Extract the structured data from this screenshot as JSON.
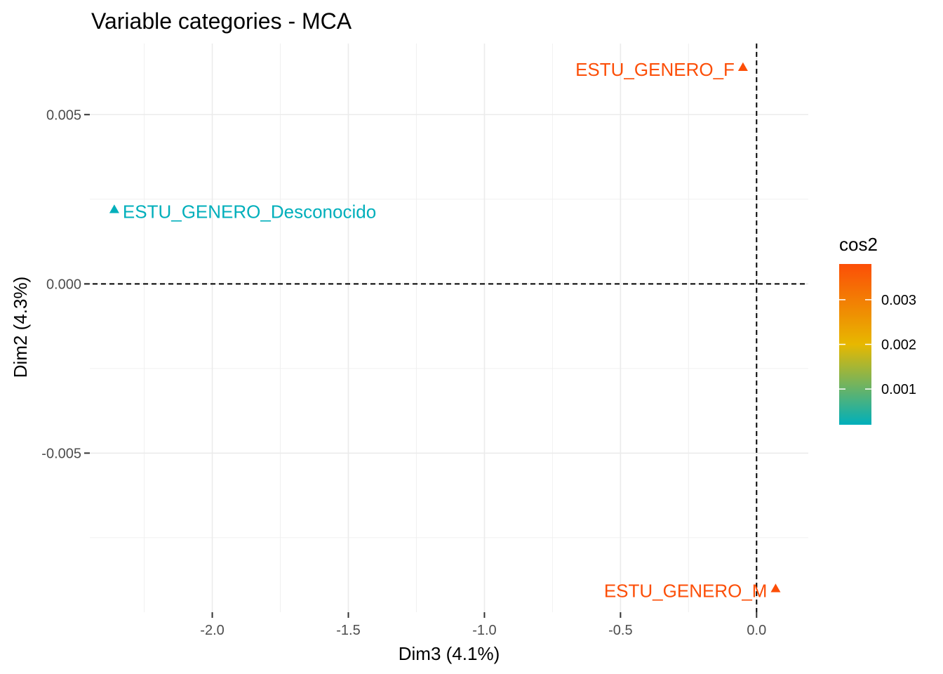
{
  "chart_data": {
    "type": "scatter",
    "title": "Variable categories - MCA",
    "xlabel": "Dim3 (4.1%)",
    "ylabel": "Dim2 (4.3%)",
    "xlim": [
      -2.45,
      0.19
    ],
    "ylim": [
      -0.0097,
      0.0071
    ],
    "x_ticks": [
      -2.0,
      -1.5,
      -1.0,
      -0.5,
      0.0
    ],
    "x_tick_labels": [
      "-2.0",
      "-1.5",
      "-1.0",
      "-0.5",
      "0.0"
    ],
    "y_ticks": [
      -0.005,
      0.0,
      0.005
    ],
    "y_tick_labels": [
      "-0.005",
      "0.000",
      "0.005"
    ],
    "grid": true,
    "reference_lines": {
      "x": 0,
      "y": 0
    },
    "points": [
      {
        "label": "ESTU_GENERO_F",
        "x": -0.05,
        "y": 0.0064,
        "cos2": 0.0037,
        "color": "#FC4E07"
      },
      {
        "label": "ESTU_GENERO_Desconocido",
        "x": -2.36,
        "y": 0.0022,
        "cos2": 0.0002,
        "color": "#00AFBB"
      },
      {
        "label": "ESTU_GENERO_M",
        "x": 0.07,
        "y": -0.009,
        "cos2": 0.0037,
        "color": "#FC4E07"
      }
    ],
    "legend": {
      "title": "cos2",
      "placement": "right",
      "min": 0.0002,
      "max": 0.0038,
      "ticks": [
        0.001,
        0.002,
        0.003
      ],
      "tick_labels": [
        "0.001",
        "0.002",
        "0.003"
      ],
      "gradient": [
        "#00AFBB",
        "#E7B800",
        "#FC4E07"
      ]
    }
  }
}
